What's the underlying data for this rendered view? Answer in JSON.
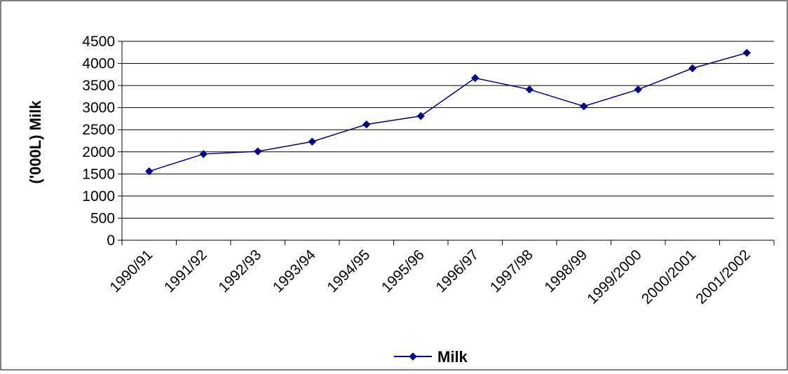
{
  "chart_data": {
    "type": "line",
    "title": "",
    "xlabel": "",
    "ylabel": "('000L) Milk",
    "categories": [
      "1990/91",
      "1991/92",
      "1992/93",
      "1993/94",
      "1994/95",
      "1995/96",
      "1996/97",
      "1997/98",
      "1998/99",
      "1999/2000",
      "2000/2001",
      "2001/2002"
    ],
    "series": [
      {
        "name": "Milk",
        "values": [
          1560,
          1950,
          2010,
          2230,
          2620,
          2810,
          3670,
          3410,
          3030,
          3410,
          3890,
          4240
        ],
        "color": "#000080",
        "marker": "diamond"
      }
    ],
    "ylim": [
      0,
      4500
    ],
    "yticks": [
      0,
      500,
      1000,
      1500,
      2000,
      2500,
      3000,
      3500,
      4000,
      4500
    ],
    "grid": "horizontal",
    "legend": "bottom-center"
  }
}
